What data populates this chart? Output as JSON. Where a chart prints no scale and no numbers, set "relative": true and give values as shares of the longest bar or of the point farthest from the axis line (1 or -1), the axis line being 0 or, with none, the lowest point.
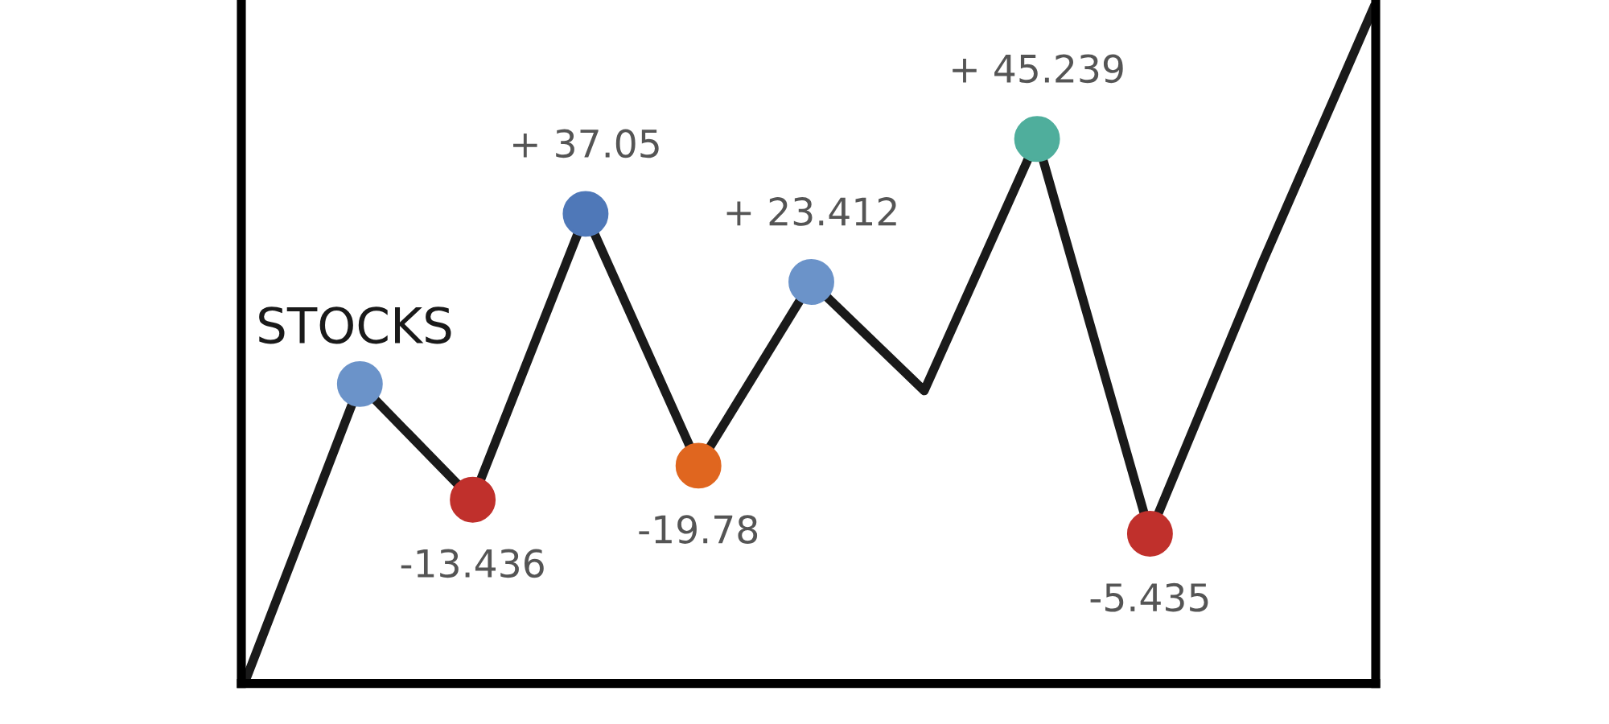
{
  "chart_data": {
    "type": "line",
    "relative": true,
    "categories": [
      null,
      null,
      null,
      null,
      null,
      null,
      null,
      null,
      null,
      null,
      null
    ],
    "values": [
      0.01,
      0.44,
      0.27,
      0.69,
      0.32,
      0.59,
      0.43,
      0.8,
      0.22,
      0.62,
      1.0
    ],
    "color": "#1a1a1a",
    "colors": [
      null,
      "#6b93c9",
      "#c0302c",
      "#4f78b8",
      "#e0661f",
      "#6b93c9",
      null,
      "#4fae9c",
      "#c0302c",
      null,
      null
    ],
    "marker": "circle",
    "line_style": "solid",
    "annotations": [
      "STOCKS",
      {
        "text": "-13.436",
        "y": 0.27
      },
      {
        "text": "+ 37.05",
        "y": 0.69
      },
      {
        "text": "-19.78",
        "y": 0.32
      },
      {
        "text": "+ 23.412",
        "y": 0.59
      },
      {
        "text": "+ 45.239",
        "y": 0.8
      },
      {
        "text": "-5.435",
        "y": 0.22
      }
    ]
  }
}
